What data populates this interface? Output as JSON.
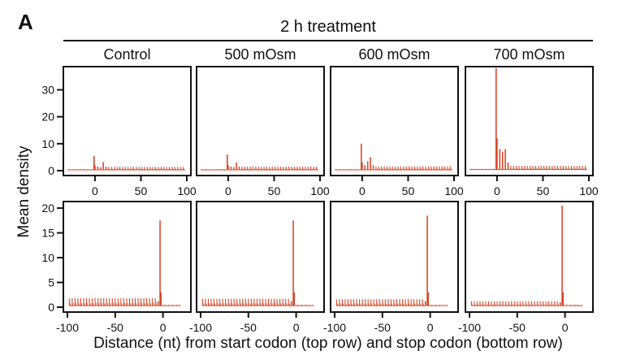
{
  "figure": {
    "panel_letter": "A",
    "treatment_title": "2 h treatment",
    "column_titles": [
      "Control",
      "500 mOsm",
      "600 mOsm",
      "700 mOsm"
    ],
    "ylabel": "Mean density",
    "xlabel": "Distance (nt) from start codon (top row) and stop codon (bottom row)",
    "colors": {
      "signal": "#d9482b",
      "frame": "#111111"
    }
  },
  "chart_data": [
    {
      "type": "bar",
      "row": "top",
      "condition": "Control",
      "xlim": [
        -30,
        100
      ],
      "ylim": [
        0,
        38
      ],
      "xticks": [
        0,
        50,
        100
      ],
      "yticks": [
        0,
        10,
        20,
        30
      ],
      "start_x": -30,
      "end_x": 98,
      "baseline": 0.3,
      "periodic_peak": 1.4,
      "spikes": [
        [
          -1,
          5.5
        ],
        [
          0,
          2.0
        ],
        [
          3,
          1.5
        ],
        [
          6,
          1.2
        ],
        [
          9,
          3.2
        ],
        [
          12,
          1.5
        ]
      ]
    },
    {
      "type": "bar",
      "row": "top",
      "condition": "500 mOsm",
      "xlim": [
        -30,
        100
      ],
      "ylim": [
        0,
        38
      ],
      "xticks": [
        0,
        50,
        100
      ],
      "yticks": [
        0,
        10,
        20,
        30
      ],
      "start_x": -30,
      "end_x": 98,
      "baseline": 0.3,
      "periodic_peak": 1.5,
      "spikes": [
        [
          -1,
          6.0
        ],
        [
          0,
          2.0
        ],
        [
          3,
          1.5
        ],
        [
          6,
          1.3
        ],
        [
          9,
          3.0
        ],
        [
          12,
          1.5
        ]
      ]
    },
    {
      "type": "bar",
      "row": "top",
      "condition": "600 mOsm",
      "xlim": [
        -30,
        100
      ],
      "ylim": [
        0,
        38
      ],
      "xticks": [
        0,
        50,
        100
      ],
      "yticks": [
        0,
        10,
        20,
        30
      ],
      "start_x": -30,
      "end_x": 98,
      "baseline": 0.3,
      "periodic_peak": 1.6,
      "spikes": [
        [
          -1,
          10.0
        ],
        [
          0,
          3.0
        ],
        [
          3,
          2.0
        ],
        [
          6,
          3.5
        ],
        [
          9,
          5.0
        ],
        [
          12,
          2.0
        ]
      ]
    },
    {
      "type": "bar",
      "row": "top",
      "condition": "700 mOsm",
      "xlim": [
        -30,
        100
      ],
      "ylim": [
        0,
        38
      ],
      "xticks": [
        0,
        50,
        100
      ],
      "yticks": [
        0,
        10,
        20,
        30
      ],
      "start_x": -30,
      "end_x": 98,
      "baseline": 0.4,
      "periodic_peak": 1.8,
      "spikes": [
        [
          -1,
          38.0
        ],
        [
          0,
          12.0
        ],
        [
          3,
          8.0
        ],
        [
          6,
          7.0
        ],
        [
          9,
          8.0
        ],
        [
          12,
          3.0
        ]
      ]
    },
    {
      "type": "bar",
      "row": "bottom",
      "condition": "Control",
      "xlim": [
        -100,
        25
      ],
      "ylim": [
        0,
        21
      ],
      "xticks": [
        -100,
        -50,
        0
      ],
      "yticks": [
        0,
        5,
        10,
        15,
        20
      ],
      "start_x": -98,
      "end_x": 18,
      "baseline": 0.3,
      "periodic_peak": 1.8,
      "spikes": [
        [
          -5,
          1.2
        ],
        [
          -3,
          17.5
        ],
        [
          -2,
          3.0
        ]
      ]
    },
    {
      "type": "bar",
      "row": "bottom",
      "condition": "500 mOsm",
      "xlim": [
        -100,
        25
      ],
      "ylim": [
        0,
        21
      ],
      "xticks": [
        -100,
        -50,
        0
      ],
      "yticks": [
        0,
        5,
        10,
        15,
        20
      ],
      "start_x": -98,
      "end_x": 18,
      "baseline": 0.3,
      "periodic_peak": 1.7,
      "spikes": [
        [
          -5,
          1.2
        ],
        [
          -3,
          17.5
        ],
        [
          -2,
          3.0
        ]
      ]
    },
    {
      "type": "bar",
      "row": "bottom",
      "condition": "600 mOsm",
      "xlim": [
        -100,
        25
      ],
      "ylim": [
        0,
        21
      ],
      "xticks": [
        -100,
        -50,
        0
      ],
      "yticks": [
        0,
        5,
        10,
        15,
        20
      ],
      "start_x": -98,
      "end_x": 18,
      "baseline": 0.3,
      "periodic_peak": 1.6,
      "spikes": [
        [
          -5,
          1.2
        ],
        [
          -3,
          18.5
        ],
        [
          -2,
          3.0
        ]
      ]
    },
    {
      "type": "bar",
      "row": "bottom",
      "condition": "700 mOsm",
      "xlim": [
        -100,
        25
      ],
      "ylim": [
        0,
        21
      ],
      "xticks": [
        -100,
        -50,
        0
      ],
      "yticks": [
        0,
        5,
        10,
        15,
        20
      ],
      "start_x": -98,
      "end_x": 18,
      "baseline": 0.3,
      "periodic_peak": 1.2,
      "spikes": [
        [
          -5,
          1.0
        ],
        [
          -3,
          20.5
        ],
        [
          -2,
          3.0
        ]
      ]
    }
  ]
}
